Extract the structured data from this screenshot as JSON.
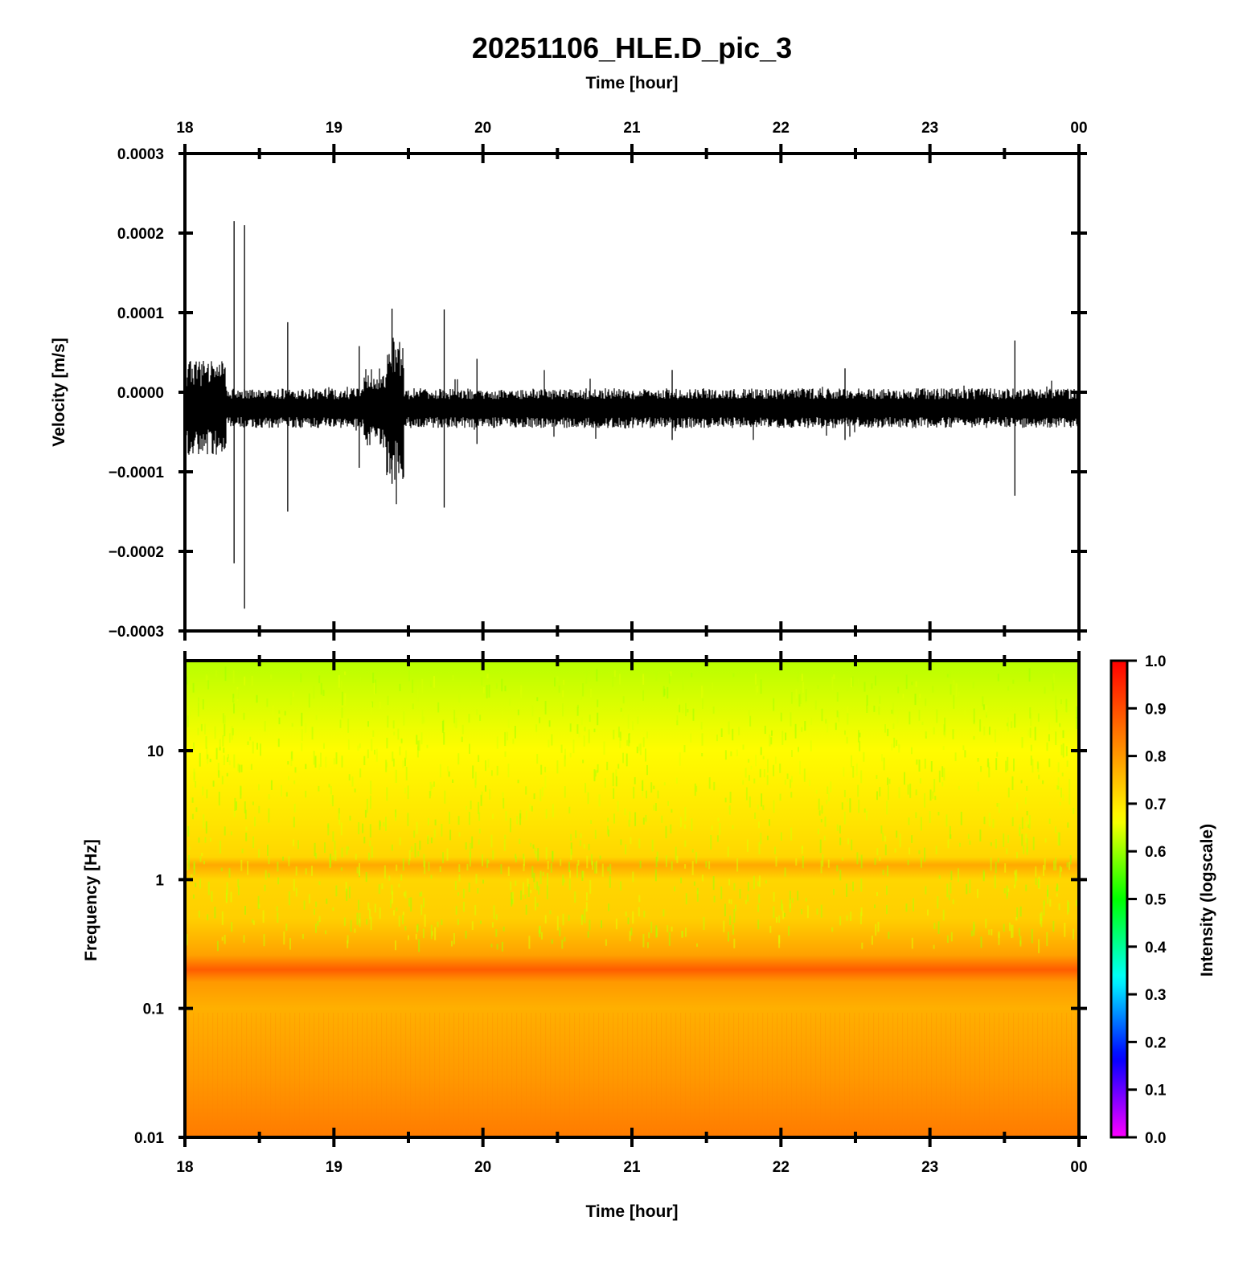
{
  "title": "20251106_HLE.D_pic_3",
  "colors": {
    "frame": "#000000",
    "trace": "#000000"
  },
  "chart_data": [
    {
      "type": "line",
      "xlabel_top": "Time [hour]",
      "ylabel": "Velocity [m/s]",
      "x_ticks": [
        "18",
        "19",
        "20",
        "21",
        "22",
        "23",
        "00"
      ],
      "xlim": [
        18,
        24
      ],
      "ylim": [
        -0.0003,
        0.0003
      ],
      "y_ticks": [
        {
          "v": 0.0003,
          "label": "0.0003"
        },
        {
          "v": 0.0002,
          "label": "0.0002"
        },
        {
          "v": 0.0001,
          "label": "0.0001"
        },
        {
          "v": 0.0,
          "label": "0.0000"
        },
        {
          "v": -0.0001,
          "label": "−0.0001"
        },
        {
          "v": -0.0002,
          "label": "−0.0002"
        },
        {
          "v": -0.0003,
          "label": "−0.0003"
        }
      ],
      "noise_level": 2.5e-05,
      "baseline": -2e-05,
      "noisy_segments": [
        {
          "start": 18.0,
          "end": 18.28,
          "amplitude": 6e-05
        },
        {
          "start": 19.2,
          "end": 19.35,
          "amplitude": 5e-05
        },
        {
          "start": 19.35,
          "end": 19.47,
          "amplitude": 9e-05
        }
      ],
      "spikes": [
        {
          "t": 18.33,
          "max": 0.000215,
          "min": -0.000215
        },
        {
          "t": 18.4,
          "max": 0.00021,
          "min": -0.000272
        },
        {
          "t": 18.69,
          "max": 8.8e-05,
          "min": -0.00015
        },
        {
          "t": 19.17,
          "max": 5.8e-05,
          "min": -9.5e-05
        },
        {
          "t": 19.39,
          "max": 0.000105,
          "min": -0.000115
        },
        {
          "t": 19.74,
          "max": 0.000104,
          "min": -0.000145
        },
        {
          "t": 19.96,
          "max": 4.2e-05,
          "min": -6.5e-05
        },
        {
          "t": 21.27,
          "max": 2.8e-05,
          "min": -6e-05
        },
        {
          "t": 22.43,
          "max": 3e-05,
          "min": -6e-05
        },
        {
          "t": 23.57,
          "max": 6.5e-05,
          "min": -0.00013
        }
      ],
      "grid": false,
      "legend": "none"
    },
    {
      "type": "heatmap",
      "xlabel": "Time [hour]",
      "ylabel": "Frequency [Hz]",
      "x_ticks": [
        "18",
        "19",
        "20",
        "21",
        "22",
        "23",
        "00"
      ],
      "xlim": [
        18,
        24
      ],
      "y_scale": "log",
      "ylim": [
        0.01,
        50
      ],
      "y_ticks": [
        {
          "v": 0.01,
          "label": "0.01"
        },
        {
          "v": 0.1,
          "label": "0.1"
        },
        {
          "v": 1,
          "label": "1"
        },
        {
          "v": 10,
          "label": "10"
        }
      ],
      "intensity_profile": [
        {
          "f": 0.01,
          "intensity": 0.84
        },
        {
          "f": 0.03,
          "intensity": 0.8
        },
        {
          "f": 0.1,
          "intensity": 0.77
        },
        {
          "f": 0.16,
          "intensity": 0.8
        },
        {
          "f": 0.2,
          "intensity": 0.88
        },
        {
          "f": 0.26,
          "intensity": 0.79
        },
        {
          "f": 0.5,
          "intensity": 0.73
        },
        {
          "f": 1,
          "intensity": 0.72
        },
        {
          "f": 1.3,
          "intensity": 0.78
        },
        {
          "f": 1.5,
          "intensity": 0.72
        },
        {
          "f": 3,
          "intensity": 0.7
        },
        {
          "f": 10,
          "intensity": 0.67
        },
        {
          "f": 50,
          "intensity": 0.62
        }
      ],
      "colorbar": {
        "label": "Intensity (logscale)",
        "range": [
          0.0,
          1.0
        ],
        "ticks": [
          "0.0",
          "0.1",
          "0.2",
          "0.3",
          "0.4",
          "0.5",
          "0.6",
          "0.7",
          "0.8",
          "0.9",
          "1.0"
        ],
        "colormap": [
          "#ff00ff",
          "#0000ff",
          "#00ffff",
          "#00ff00",
          "#ffff00",
          "#ff8000",
          "#ff0000"
        ]
      }
    }
  ]
}
